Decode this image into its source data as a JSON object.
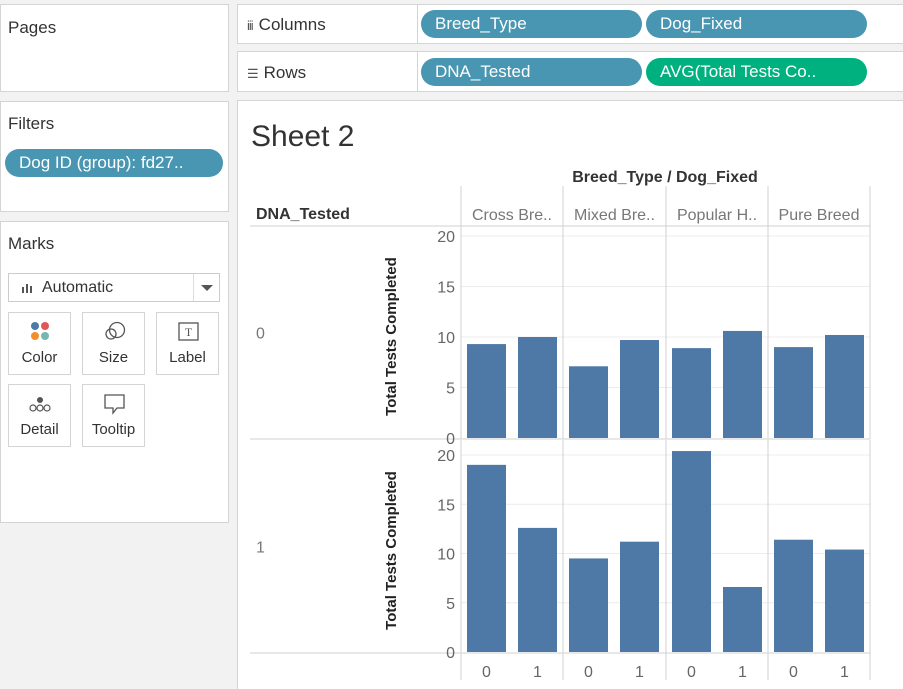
{
  "pages": {
    "title": "Pages"
  },
  "filters": {
    "title": "Filters",
    "pill": "Dog ID (group): fd27.."
  },
  "marks": {
    "title": "Marks",
    "type": "Automatic",
    "cards": [
      {
        "label": "Color",
        "icon": "color-icon"
      },
      {
        "label": "Size",
        "icon": "size-icon"
      },
      {
        "label": "Label",
        "icon": "label-icon"
      },
      {
        "label": "Detail",
        "icon": "detail-icon"
      },
      {
        "label": "Tooltip",
        "icon": "tooltip-icon"
      }
    ]
  },
  "shelves": {
    "columns_label": "Columns",
    "rows_label": "Rows",
    "columns": [
      "Breed_Type",
      "Dog_Fixed"
    ],
    "rows": [
      "DNA_Tested",
      "AVG(Total Tests Co.."
    ]
  },
  "sheet": {
    "title": "Sheet 2"
  },
  "colors": {
    "bar": "#4e79a7",
    "dimension_pill": "#4996b2",
    "measure_pill": "#00b180"
  },
  "chart_data": {
    "type": "bar",
    "column_header_title": "Breed_Type / Dog_Fixed",
    "row_header_title": "DNA_Tested",
    "breed_types": [
      "Cross Bre..",
      "Mixed Bre..",
      "Popular H..",
      "Pure Breed"
    ],
    "dog_fixed": [
      "0",
      "1"
    ],
    "rows": [
      {
        "dna_tested": "0",
        "values": [
          9.3,
          10.0,
          7.1,
          9.7,
          8.9,
          10.6,
          9.0,
          10.2
        ],
        "ylim": [
          0,
          20
        ]
      },
      {
        "dna_tested": "1",
        "values": [
          19.0,
          12.6,
          9.5,
          11.2,
          20.4,
          6.6,
          11.4,
          10.4
        ],
        "ylim": [
          0,
          21
        ]
      }
    ],
    "ylabel": "Total Tests Completed",
    "yticks": [
      0,
      5,
      10,
      15,
      20
    ]
  }
}
